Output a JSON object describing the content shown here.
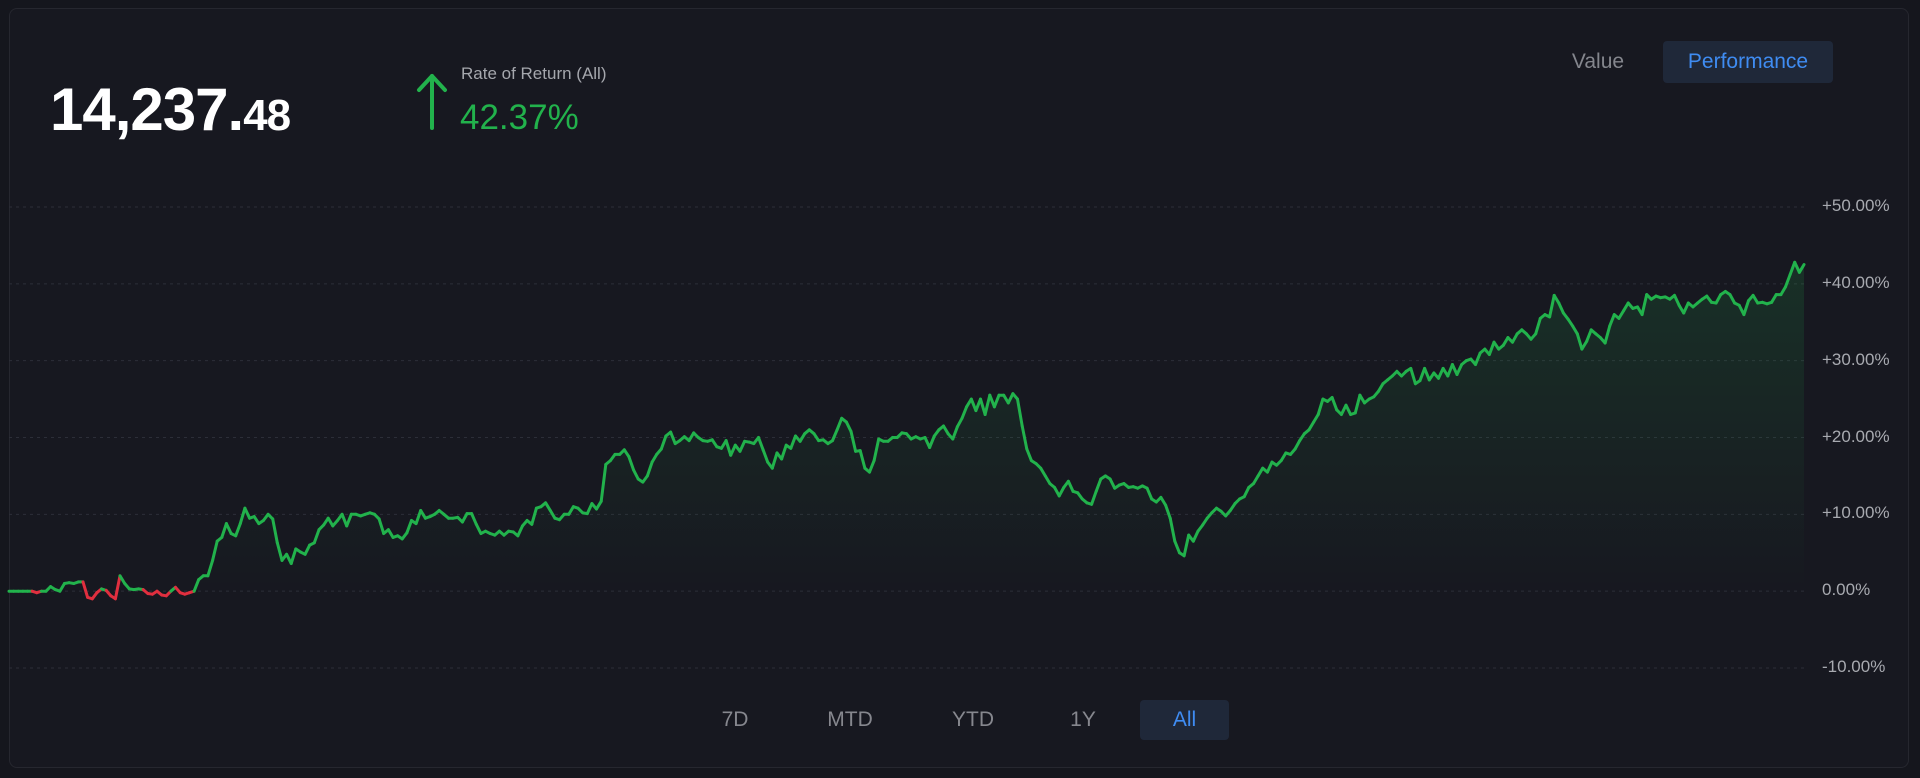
{
  "summary": {
    "balance_int": "14,237.",
    "balance_dec": "48",
    "ror_label": "Rate of Return (All)",
    "ror_value": "42.37%"
  },
  "view_toggle": {
    "value_label": "Value",
    "performance_label": "Performance",
    "active": "Performance"
  },
  "range_buttons": [
    "7D",
    "MTD",
    "YTD",
    "1Y",
    "All"
  ],
  "active_range": "All",
  "colors": {
    "positive": "#22b24c",
    "negative": "#e02f3f",
    "accent": "#3f8cf2"
  },
  "icons": {
    "trend": "arrow-up-icon"
  },
  "chart_data": {
    "type": "line",
    "title": "",
    "xlabel": "",
    "ylabel": "",
    "ylim": [
      -10,
      50
    ],
    "yticks": [
      "+50.00%",
      "+40.00%",
      "+30.00%",
      "+20.00%",
      "+10.00%",
      "0.00%",
      "-10.00%"
    ],
    "ytick_values": [
      50,
      40,
      30,
      20,
      10,
      0,
      -10
    ],
    "grid": true,
    "y_axis_position": "right",
    "series": [
      {
        "values": [
          0,
          0,
          0,
          0,
          0,
          0,
          -0.2,
          0,
          0,
          0.6,
          0.2,
          0,
          1,
          1.1,
          1,
          1.2,
          1.2,
          -0.8,
          -1,
          -0.2,
          0.3,
          0.1,
          -0.6,
          -1,
          2,
          1,
          0.3,
          0.2,
          0.3,
          0.2,
          -0.3,
          -0.4,
          0,
          -0.5,
          -0.6,
          0,
          0.5,
          -0.2,
          -0.4,
          -0.2,
          0,
          1.5,
          2,
          2,
          4,
          6.5,
          7,
          8.8,
          7.5,
          7.2,
          8.8,
          10.8,
          9.5,
          9.7,
          8.8,
          9.2,
          10,
          9.4,
          6.3,
          4,
          4.8,
          3.6,
          5.5,
          5.1,
          4.8,
          6,
          6.3,
          8,
          8.6,
          9.5,
          8.5,
          9.2,
          10,
          8.5,
          10,
          10,
          9.8,
          10,
          10.2,
          10,
          9.4,
          7.5,
          8,
          7,
          7.2,
          6.8,
          7.6,
          9.2,
          8.8,
          10.5,
          9.5,
          9.7,
          10,
          10.5,
          10,
          9.5,
          9.5,
          9.6,
          9,
          10.1,
          10.1,
          8.7,
          7.5,
          7.8,
          7.5,
          7.3,
          7.8,
          7.3,
          7.8,
          7.7,
          7.2,
          8.5,
          9.2,
          8.7,
          10.8,
          11,
          11.5,
          10.5,
          9.5,
          9.3,
          10,
          10,
          11,
          10.8,
          10.2,
          10.1,
          11.4,
          10.7,
          11.7,
          16.5,
          17,
          17.8,
          17.8,
          18.4,
          17.5,
          15.8,
          14.6,
          14.2,
          15,
          16.8,
          17.8,
          18.5,
          20.2,
          20.7,
          19.2,
          19.6,
          20.1,
          19.6,
          20.6,
          20,
          19.6,
          19.5,
          19.7,
          18.8,
          18.6,
          19.6,
          17.7,
          19,
          18.2,
          19.5,
          19.4,
          19.2,
          20,
          18.4,
          16.8,
          16,
          18,
          17.2,
          19,
          18.6,
          20.2,
          19.5,
          20.5,
          21,
          20.5,
          19.6,
          19.7,
          19.2,
          19.6,
          21,
          22.5,
          22,
          20.8,
          18.2,
          18.3,
          16,
          15.5,
          17,
          19.8,
          19.5,
          19.5,
          20,
          20,
          20.6,
          20.5,
          19.8,
          20.1,
          19.8,
          20,
          18.7,
          20.2,
          21,
          21.5,
          20.5,
          19.8,
          21.4,
          22.5,
          24,
          25,
          23.5,
          25,
          23,
          25.5,
          24,
          25.5,
          25.5,
          24.5,
          25.7,
          25,
          21.5,
          18.5,
          17,
          16.6,
          16,
          15,
          14,
          13.5,
          12.4,
          13.5,
          14.3,
          13,
          12.8,
          12,
          11.5,
          11.3,
          13,
          14.6,
          15,
          14.6,
          13.4,
          13.8,
          14,
          13.5,
          13.6,
          13.4,
          13.7,
          13.4,
          12,
          11.6,
          12.2,
          11.2,
          9.5,
          6.5,
          5,
          4.6,
          7.3,
          6.5,
          7.8,
          8.6,
          9.5,
          10.2,
          10.8,
          10.4,
          9.8,
          10.5,
          11.4,
          12,
          12.3,
          13.5,
          14,
          15,
          16,
          15.5,
          16.8,
          16.4,
          17,
          18,
          17.8,
          18.5,
          19.6,
          20.5,
          21,
          22,
          23,
          25,
          24.7,
          25.2,
          23.6,
          23,
          24.2,
          23,
          23.2,
          25.5,
          24.5,
          25,
          25.3,
          26,
          27,
          27.5,
          28,
          28.6,
          28,
          28.6,
          29,
          27,
          27.4,
          29,
          27.5,
          28.4,
          27.7,
          29,
          28,
          29.5,
          28.2,
          29.5,
          30,
          30.2,
          29.5,
          31,
          31.5,
          30.8,
          32.4,
          31.5,
          32,
          33,
          32.4,
          33.5,
          34,
          33.5,
          32.8,
          33.5,
          35.5,
          36,
          35.7,
          38.5,
          37.5,
          36.2,
          35.4,
          34.5,
          33.5,
          31.5,
          32.5,
          34,
          33.5,
          33,
          32.3,
          34.5,
          36,
          35.5,
          36.5,
          37.5,
          36.8,
          37,
          36,
          38.6,
          38,
          38.4,
          38.2,
          38.3,
          38,
          38.5,
          37.2,
          36.2,
          37.5,
          37,
          37.5,
          38,
          38.4,
          37.6,
          37.5,
          38.6,
          39,
          38.6,
          37.5,
          37.2,
          36,
          37.8,
          38.5,
          37.5,
          37.6,
          37.4,
          37.6,
          38.6,
          38.6,
          39.6,
          41.2,
          42.8,
          41.5,
          42.5
        ]
      }
    ]
  }
}
